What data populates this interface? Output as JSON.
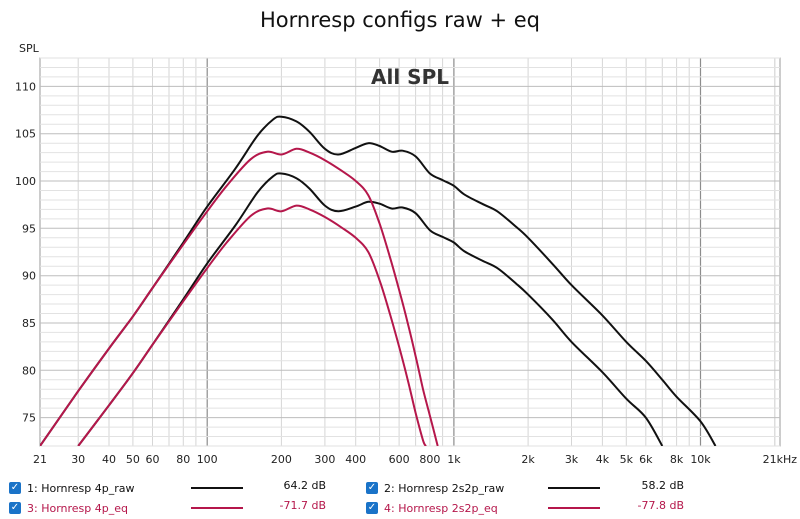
{
  "chart_data": {
    "type": "line",
    "title": "Hornresp configs raw + eq",
    "ylabel": "SPL",
    "annotation": "All SPL",
    "x_scale": "log",
    "xlim": [
      21,
      21000
    ],
    "ylim": [
      72,
      113
    ],
    "grid": true,
    "legend_position": "bottom",
    "y_ticks": [
      75,
      80,
      85,
      90,
      95,
      100,
      105,
      110
    ],
    "x_ticks": [
      {
        "v": 21,
        "t": "21"
      },
      {
        "v": 30,
        "t": "30"
      },
      {
        "v": 40,
        "t": "40"
      },
      {
        "v": 50,
        "t": "50"
      },
      {
        "v": 60,
        "t": "60"
      },
      {
        "v": 80,
        "t": "80"
      },
      {
        "v": 100,
        "t": "100"
      },
      {
        "v": 200,
        "t": "200"
      },
      {
        "v": 300,
        "t": "300"
      },
      {
        "v": 400,
        "t": "400"
      },
      {
        "v": 600,
        "t": "600"
      },
      {
        "v": 800,
        "t": "800"
      },
      {
        "v": 1000,
        "t": "1k"
      },
      {
        "v": 2000,
        "t": "2k"
      },
      {
        "v": 3000,
        "t": "3k"
      },
      {
        "v": 4000,
        "t": "4k"
      },
      {
        "v": 5000,
        "t": "5k"
      },
      {
        "v": 6000,
        "t": "6k"
      },
      {
        "v": 8000,
        "t": "8k"
      },
      {
        "v": 10000,
        "t": "10k"
      },
      {
        "v": 21000,
        "t": "21kHz"
      }
    ],
    "series": [
      {
        "name": "1: Hornresp 4p_raw",
        "color": "#111111",
        "legend_value": "64.2 dB",
        "points": [
          [
            21,
            72
          ],
          [
            30,
            77.8
          ],
          [
            40,
            82.3
          ],
          [
            50,
            85.7
          ],
          [
            60,
            88.7
          ],
          [
            80,
            93.5
          ],
          [
            100,
            97.3
          ],
          [
            130,
            101.3
          ],
          [
            160,
            104.8
          ],
          [
            185,
            106.5
          ],
          [
            200,
            106.8
          ],
          [
            230,
            106.3
          ],
          [
            260,
            105.2
          ],
          [
            300,
            103.4
          ],
          [
            340,
            102.8
          ],
          [
            400,
            103.5
          ],
          [
            450,
            104.0
          ],
          [
            500,
            103.7
          ],
          [
            560,
            103.1
          ],
          [
            620,
            103.2
          ],
          [
            700,
            102.6
          ],
          [
            800,
            100.8
          ],
          [
            900,
            100.1
          ],
          [
            1000,
            99.5
          ],
          [
            1100,
            98.6
          ],
          [
            1300,
            97.6
          ],
          [
            1500,
            96.8
          ],
          [
            1800,
            95.1
          ],
          [
            2000,
            94.0
          ],
          [
            2500,
            91.3
          ],
          [
            3000,
            89.0
          ],
          [
            4000,
            85.8
          ],
          [
            5000,
            83.0
          ],
          [
            6000,
            81.0
          ],
          [
            7000,
            79.0
          ],
          [
            8000,
            77.2
          ],
          [
            10000,
            74.6
          ],
          [
            11500,
            72
          ]
        ]
      },
      {
        "name": "2: Hornresp 2s2p_raw",
        "color": "#111111",
        "legend_value": "58.2 dB",
        "points": [
          [
            30,
            72
          ],
          [
            40,
            76.3
          ],
          [
            50,
            79.7
          ],
          [
            60,
            82.7
          ],
          [
            80,
            87.5
          ],
          [
            100,
            91.3
          ],
          [
            130,
            95.3
          ],
          [
            160,
            98.8
          ],
          [
            185,
            100.5
          ],
          [
            200,
            100.8
          ],
          [
            230,
            100.3
          ],
          [
            260,
            99.2
          ],
          [
            300,
            97.4
          ],
          [
            340,
            96.8
          ],
          [
            400,
            97.3
          ],
          [
            450,
            97.8
          ],
          [
            500,
            97.6
          ],
          [
            560,
            97.1
          ],
          [
            620,
            97.2
          ],
          [
            700,
            96.6
          ],
          [
            800,
            94.8
          ],
          [
            900,
            94.1
          ],
          [
            1000,
            93.5
          ],
          [
            1100,
            92.6
          ],
          [
            1300,
            91.6
          ],
          [
            1500,
            90.8
          ],
          [
            1800,
            89.1
          ],
          [
            2000,
            88.0
          ],
          [
            2500,
            85.4
          ],
          [
            3000,
            83.0
          ],
          [
            4000,
            79.8
          ],
          [
            5000,
            77.0
          ],
          [
            6000,
            75.0
          ],
          [
            7000,
            72
          ]
        ]
      },
      {
        "name": "3: Hornresp 4p_eq",
        "color": "#b5174b",
        "legend_value": "-71.7 dB",
        "points": [
          [
            21,
            72
          ],
          [
            30,
            77.8
          ],
          [
            40,
            82.3
          ],
          [
            50,
            85.7
          ],
          [
            60,
            88.7
          ],
          [
            80,
            93.3
          ],
          [
            100,
            96.8
          ],
          [
            120,
            99.5
          ],
          [
            150,
            102.3
          ],
          [
            175,
            103.1
          ],
          [
            200,
            102.8
          ],
          [
            230,
            103.4
          ],
          [
            260,
            103.0
          ],
          [
            300,
            102.2
          ],
          [
            350,
            101.1
          ],
          [
            400,
            100.0
          ],
          [
            450,
            98.5
          ],
          [
            500,
            95.5
          ],
          [
            550,
            92.0
          ],
          [
            600,
            88.5
          ],
          [
            650,
            85.0
          ],
          [
            700,
            81.5
          ],
          [
            750,
            78.0
          ],
          [
            800,
            75.2
          ],
          [
            860,
            72
          ]
        ]
      },
      {
        "name": "4: Hornresp 2s2p_eq",
        "color": "#b5174b",
        "legend_value": "-77.8 dB",
        "points": [
          [
            30,
            72
          ],
          [
            40,
            76.3
          ],
          [
            50,
            79.7
          ],
          [
            60,
            82.7
          ],
          [
            80,
            87.3
          ],
          [
            100,
            90.8
          ],
          [
            120,
            93.5
          ],
          [
            150,
            96.3
          ],
          [
            175,
            97.1
          ],
          [
            200,
            96.8
          ],
          [
            230,
            97.4
          ],
          [
            260,
            97.0
          ],
          [
            300,
            96.2
          ],
          [
            350,
            95.1
          ],
          [
            400,
            94.0
          ],
          [
            450,
            92.5
          ],
          [
            500,
            89.5
          ],
          [
            550,
            86.0
          ],
          [
            600,
            82.5
          ],
          [
            650,
            79.0
          ],
          [
            700,
            75.5
          ],
          [
            750,
            72.6
          ],
          [
            770,
            72
          ]
        ]
      }
    ]
  }
}
